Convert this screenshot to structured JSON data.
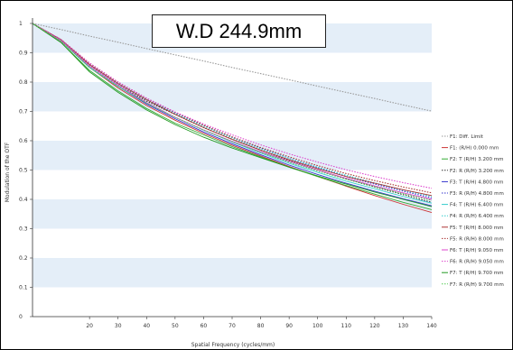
{
  "chart_data": {
    "type": "line",
    "title": "W.D 244.9mm",
    "xlabel": "Spatial Frequency (cycles/mm)",
    "ylabel": "Modulation of the OTF",
    "xlim": [
      0,
      140
    ],
    "ylim": [
      0,
      1
    ],
    "x_ticks": [
      20,
      30,
      40,
      50,
      60,
      70,
      80,
      90,
      100,
      110,
      120,
      130,
      140
    ],
    "y_ticks": [
      0,
      0.1,
      0.2,
      0.3,
      0.4,
      0.5,
      0.6,
      0.7,
      0.8,
      0.9,
      1
    ],
    "x_tick_labels": [
      "20",
      "30",
      "40",
      "50",
      "60",
      "70",
      "80",
      "90",
      "100",
      "110",
      "120",
      "130",
      "140"
    ],
    "y_tick_labels": [
      "0",
      "0.1",
      "0.2",
      "0.3",
      "0.4",
      "0.5",
      "0.6",
      "0.7",
      "0.8",
      "0.9",
      "1"
    ],
    "grid": "horizontal bands",
    "legend_position": "right",
    "x": [
      0,
      10,
      20,
      30,
      40,
      50,
      60,
      70,
      80,
      90,
      100,
      110,
      120,
      130,
      140
    ],
    "series": [
      {
        "name": "F1: Diff. Limit",
        "color": "#999999",
        "dash": "dotted",
        "values": [
          1.0,
          0.979,
          0.957,
          0.936,
          0.914,
          0.893,
          0.872,
          0.85,
          0.829,
          0.808,
          0.786,
          0.765,
          0.744,
          0.722,
          0.701
        ]
      },
      {
        "name": "F1: (R/H) 0.000 mm",
        "color": "#cc3333",
        "dash": "solid",
        "values": [
          1.0,
          0.94,
          0.85,
          0.78,
          0.72,
          0.67,
          0.625,
          0.585,
          0.548,
          0.512,
          0.478,
          0.445,
          0.413,
          0.383,
          0.355
        ]
      },
      {
        "name": "F2: T (R/H) 3.200 mm",
        "color": "#33aa33",
        "dash": "solid",
        "values": [
          1.0,
          0.935,
          0.84,
          0.77,
          0.71,
          0.66,
          0.62,
          0.58,
          0.545,
          0.51,
          0.478,
          0.447,
          0.418,
          0.39,
          0.365
        ]
      },
      {
        "name": "F2: R (R/H) 3.200 mm",
        "color": "#333333",
        "dash": "dotted",
        "values": [
          1.0,
          0.94,
          0.855,
          0.79,
          0.735,
          0.69,
          0.645,
          0.605,
          0.568,
          0.532,
          0.5,
          0.47,
          0.442,
          0.416,
          0.39
        ]
      },
      {
        "name": "F3: T (R/H) 4.800 mm",
        "color": "#3333cc",
        "dash": "solid",
        "values": [
          1.0,
          0.94,
          0.85,
          0.785,
          0.725,
          0.675,
          0.63,
          0.59,
          0.552,
          0.517,
          0.485,
          0.455,
          0.428,
          0.402,
          0.378
        ]
      },
      {
        "name": "F3: R (R/H) 4.800 mm",
        "color": "#3333cc",
        "dash": "dotted",
        "values": [
          1.0,
          0.945,
          0.86,
          0.795,
          0.74,
          0.695,
          0.652,
          0.612,
          0.575,
          0.54,
          0.508,
          0.478,
          0.452,
          0.428,
          0.405
        ]
      },
      {
        "name": "F4: T (R/H) 6.400 mm",
        "color": "#33cccc",
        "dash": "solid",
        "values": [
          1.0,
          0.94,
          0.85,
          0.785,
          0.728,
          0.68,
          0.636,
          0.596,
          0.558,
          0.523,
          0.492,
          0.462,
          0.436,
          0.41,
          0.387
        ]
      },
      {
        "name": "F4: R (R/H) 6.400 mm",
        "color": "#33cccc",
        "dash": "dotted",
        "values": [
          1.0,
          0.945,
          0.86,
          0.795,
          0.74,
          0.693,
          0.65,
          0.61,
          0.573,
          0.54,
          0.51,
          0.482,
          0.456,
          0.432,
          0.41
        ]
      },
      {
        "name": "F5: T (R/H) 8.000 mm",
        "color": "#aa3333",
        "dash": "solid",
        "values": [
          1.0,
          0.945,
          0.86,
          0.795,
          0.74,
          0.69,
          0.645,
          0.605,
          0.568,
          0.535,
          0.505,
          0.478,
          0.455,
          0.433,
          0.413
        ]
      },
      {
        "name": "F5: R (R/H) 8.000 mm",
        "color": "#aa3333",
        "dash": "dotted",
        "values": [
          1.0,
          0.945,
          0.865,
          0.8,
          0.745,
          0.697,
          0.653,
          0.613,
          0.577,
          0.545,
          0.515,
          0.488,
          0.464,
          0.442,
          0.422
        ]
      },
      {
        "name": "F6: T (R/H) 9.050 mm",
        "color": "#dd44cc",
        "dash": "solid",
        "values": [
          1.0,
          0.94,
          0.855,
          0.79,
          0.73,
          0.68,
          0.637,
          0.598,
          0.562,
          0.53,
          0.5,
          0.472,
          0.446,
          0.422,
          0.4
        ]
      },
      {
        "name": "F6: R (R/H) 9.050 mm",
        "color": "#dd44cc",
        "dash": "dotted",
        "values": [
          1.0,
          0.945,
          0.865,
          0.8,
          0.745,
          0.698,
          0.657,
          0.62,
          0.586,
          0.555,
          0.527,
          0.501,
          0.478,
          0.457,
          0.438
        ]
      },
      {
        "name": "F7: T (R/H) 9.700 mm",
        "color": "#229922",
        "dash": "solid",
        "values": [
          1.0,
          0.935,
          0.835,
          0.765,
          0.705,
          0.655,
          0.612,
          0.575,
          0.542,
          0.51,
          0.48,
          0.452,
          0.425,
          0.4,
          0.375
        ]
      },
      {
        "name": "F7: R (R/H) 9.700 mm",
        "color": "#55cc55",
        "dash": "dotted",
        "values": [
          1.0,
          0.94,
          0.85,
          0.785,
          0.728,
          0.68,
          0.637,
          0.597,
          0.56,
          0.527,
          0.497,
          0.469,
          0.443,
          0.419,
          0.397
        ]
      }
    ]
  }
}
